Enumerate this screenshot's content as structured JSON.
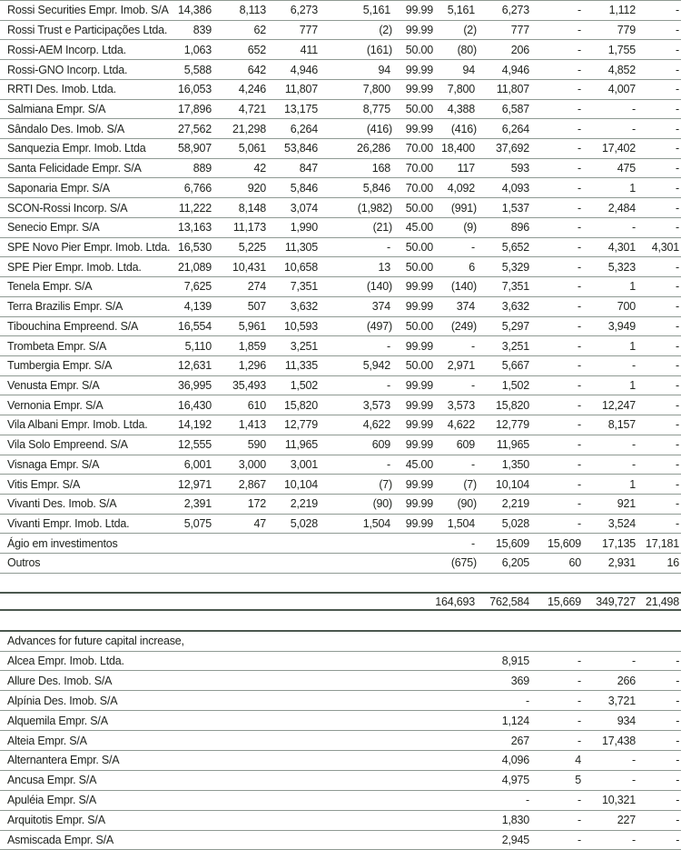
{
  "page": {
    "background_color": "#ffffff",
    "text_color": "#20241f",
    "thin_rule_color": "#8f9a93",
    "heavy_rule_color": "#4b584f"
  },
  "main_table": {
    "rows": [
      {
        "name": "Rossi Securities Empr. Imob. S/A",
        "values": [
          "14,386",
          "8,113",
          "6,273",
          "5,161",
          "99.99",
          "5,161",
          "6,273",
          "-",
          "1,112",
          "-"
        ]
      },
      {
        "name": "Rossi Trust e Participações Ltda.",
        "values": [
          "839",
          "62",
          "777",
          "(2)",
          "99.99",
          "(2)",
          "777",
          "-",
          "779",
          "-"
        ]
      },
      {
        "name": "Rossi-AEM Incorp. Ltda.",
        "values": [
          "1,063",
          "652",
          "411",
          "(161)",
          "50.00",
          "(80)",
          "206",
          "-",
          "1,755",
          "-"
        ]
      },
      {
        "name": "Rossi-GNO Incorp. Ltda.",
        "values": [
          "5,588",
          "642",
          "4,946",
          "94",
          "99.99",
          "94",
          "4,946",
          "-",
          "4,852",
          "-"
        ]
      },
      {
        "name": "RRTI Des. Imob. Ltda.",
        "values": [
          "16,053",
          "4,246",
          "11,807",
          "7,800",
          "99.99",
          "7,800",
          "11,807",
          "-",
          "4,007",
          "-"
        ]
      },
      {
        "name": "Salmiana Empr. S/A",
        "values": [
          "17,896",
          "4,721",
          "13,175",
          "8,775",
          "50.00",
          "4,388",
          "6,587",
          "-",
          "-",
          "-"
        ]
      },
      {
        "name": "Sândalo Des. Imob. S/A",
        "values": [
          "27,562",
          "21,298",
          "6,264",
          "(416)",
          "99.99",
          "(416)",
          "6,264",
          "-",
          "-",
          "-"
        ]
      },
      {
        "name": "Sanquezia Empr. Imob. Ltda",
        "values": [
          "58,907",
          "5,061",
          "53,846",
          "26,286",
          "70.00",
          "18,400",
          "37,692",
          "-",
          "17,402",
          "-"
        ]
      },
      {
        "name": "Santa Felicidade Empr. S/A",
        "values": [
          "889",
          "42",
          "847",
          "168",
          "70.00",
          "117",
          "593",
          "-",
          "475",
          "-"
        ]
      },
      {
        "name": "Saponaria Empr. S/A",
        "values": [
          "6,766",
          "920",
          "5,846",
          "5,846",
          "70.00",
          "4,092",
          "4,093",
          "-",
          "1",
          "-"
        ]
      },
      {
        "name": "SCON-Rossi Incorp. S/A",
        "values": [
          "11,222",
          "8,148",
          "3,074",
          "(1,982)",
          "50.00",
          "(991)",
          "1,537",
          "-",
          "2,484",
          "-"
        ]
      },
      {
        "name": "Senecio Empr. S/A",
        "values": [
          "13,163",
          "11,173",
          "1,990",
          "(21)",
          "45.00",
          "(9)",
          "896",
          "-",
          "-",
          "-"
        ]
      },
      {
        "name": "SPE Novo Pier Empr. Imob. Ltda.",
        "values": [
          "16,530",
          "5,225",
          "11,305",
          "-",
          "50.00",
          "-",
          "5,652",
          "-",
          "4,301",
          "4,301"
        ]
      },
      {
        "name": "SPE Pier Empr. Imob. Ltda.",
        "values": [
          "21,089",
          "10,431",
          "10,658",
          "13",
          "50.00",
          "6",
          "5,329",
          "-",
          "5,323",
          "-"
        ]
      },
      {
        "name": "Tenela Empr. S/A",
        "values": [
          "7,625",
          "274",
          "7,351",
          "(140)",
          "99.99",
          "(140)",
          "7,351",
          "-",
          "1",
          "-"
        ]
      },
      {
        "name": "Terra Brazilis Empr. S/A",
        "values": [
          "4,139",
          "507",
          "3,632",
          "374",
          "99.99",
          "374",
          "3,632",
          "-",
          "700",
          "-"
        ]
      },
      {
        "name": "Tibouchina Empreend. S/A",
        "values": [
          "16,554",
          "5,961",
          "10,593",
          "(497)",
          "50.00",
          "(249)",
          "5,297",
          "-",
          "3,949",
          "-"
        ]
      },
      {
        "name": "Trombeta Empr. S/A",
        "values": [
          "5,110",
          "1,859",
          "3,251",
          "-",
          "99.99",
          "-",
          "3,251",
          "-",
          "1",
          "-"
        ]
      },
      {
        "name": "Tumbergia Empr. S/A",
        "values": [
          "12,631",
          "1,296",
          "11,335",
          "5,942",
          "50.00",
          "2,971",
          "5,667",
          "-",
          "-",
          "-"
        ]
      },
      {
        "name": "Venusta Empr. S/A",
        "values": [
          "36,995",
          "35,493",
          "1,502",
          "-",
          "99.99",
          "-",
          "1,502",
          "-",
          "1",
          "-"
        ]
      },
      {
        "name": "Vernonia Empr. S/A",
        "values": [
          "16,430",
          "610",
          "15,820",
          "3,573",
          "99.99",
          "3,573",
          "15,820",
          "-",
          "12,247",
          "-"
        ]
      },
      {
        "name": "Vila Albani Empr. Imob. Ltda.",
        "values": [
          "14,192",
          "1,413",
          "12,779",
          "4,622",
          "99.99",
          "4,622",
          "12,779",
          "-",
          "8,157",
          "-"
        ]
      },
      {
        "name": "Vila Solo Empreend. S/A",
        "values": [
          "12,555",
          "590",
          "11,965",
          "609",
          "99.99",
          "609",
          "11,965",
          "-",
          "-",
          "-"
        ]
      },
      {
        "name": "Visnaga Empr. S/A",
        "values": [
          "6,001",
          "3,000",
          "3,001",
          "-",
          "45.00",
          "-",
          "1,350",
          "-",
          "-",
          "-"
        ]
      },
      {
        "name": "Vitis Empr. S/A",
        "values": [
          "12,971",
          "2,867",
          "10,104",
          "(7)",
          "99.99",
          "(7)",
          "10,104",
          "-",
          "1",
          "-"
        ]
      },
      {
        "name": "Vivanti Des. Imob. S/A",
        "values": [
          "2,391",
          "172",
          "2,219",
          "(90)",
          "99.99",
          "(90)",
          "2,219",
          "-",
          "921",
          "-"
        ]
      },
      {
        "name": "Vivanti Empr. Imob. Ltda.",
        "values": [
          "5,075",
          "47",
          "5,028",
          "1,504",
          "99.99",
          "1,504",
          "5,028",
          "-",
          "3,524",
          "-"
        ]
      },
      {
        "name": "Ágio em investimentos",
        "values": [
          "",
          "",
          "",
          "",
          "",
          "-",
          "15,609",
          "15,609",
          "17,135",
          "17,181"
        ]
      },
      {
        "name": "Outros",
        "values": [
          "",
          "",
          "",
          "",
          "",
          "(675)",
          "6,205",
          "60",
          "2,931",
          "16"
        ]
      }
    ]
  },
  "totals_row": {
    "name": "",
    "values": [
      "",
      "",
      "",
      "",
      "",
      "164,693",
      "762,584",
      "15,669",
      "349,727",
      "21,498"
    ]
  },
  "advances_section": {
    "header": "Advances for future capital increase,",
    "rows": [
      {
        "name": "Alcea Empr. Imob. Ltda.",
        "values": [
          "",
          "",
          "",
          "",
          "",
          "",
          "8,915",
          "-",
          "-",
          "-"
        ]
      },
      {
        "name": "Allure Des. Imob. S/A",
        "values": [
          "",
          "",
          "",
          "",
          "",
          "",
          "369",
          "-",
          "266",
          "-"
        ]
      },
      {
        "name": "Alpínia Des. Imob. S/A",
        "values": [
          "",
          "",
          "",
          "",
          "",
          "",
          "-",
          "-",
          "3,721",
          "-"
        ]
      },
      {
        "name": "Alquemila Empr. S/A",
        "values": [
          "",
          "",
          "",
          "",
          "",
          "",
          "1,124",
          "-",
          "934",
          "-"
        ]
      },
      {
        "name": "Alteia Empr. S/A",
        "values": [
          "",
          "",
          "",
          "",
          "",
          "",
          "267",
          "-",
          "17,438",
          "-"
        ]
      },
      {
        "name": "Alternantera Empr. S/A",
        "values": [
          "",
          "",
          "",
          "",
          "",
          "",
          "4,096",
          "4",
          "-",
          "-"
        ]
      },
      {
        "name": "Ancusa Empr. S/A",
        "values": [
          "",
          "",
          "",
          "",
          "",
          "",
          "4,975",
          "5",
          "-",
          "-"
        ]
      },
      {
        "name": "Apuléia Empr. S/A",
        "values": [
          "",
          "",
          "",
          "",
          "",
          "",
          "-",
          "-",
          "10,321",
          "-"
        ]
      },
      {
        "name": "Arquitotis Empr. S/A",
        "values": [
          "",
          "",
          "",
          "",
          "",
          "",
          "1,830",
          "-",
          "227",
          "-"
        ]
      },
      {
        "name": "Asmiscada Empr. S/A",
        "values": [
          "",
          "",
          "",
          "",
          "",
          "",
          "2,945",
          "-",
          "-",
          "-"
        ]
      }
    ]
  }
}
